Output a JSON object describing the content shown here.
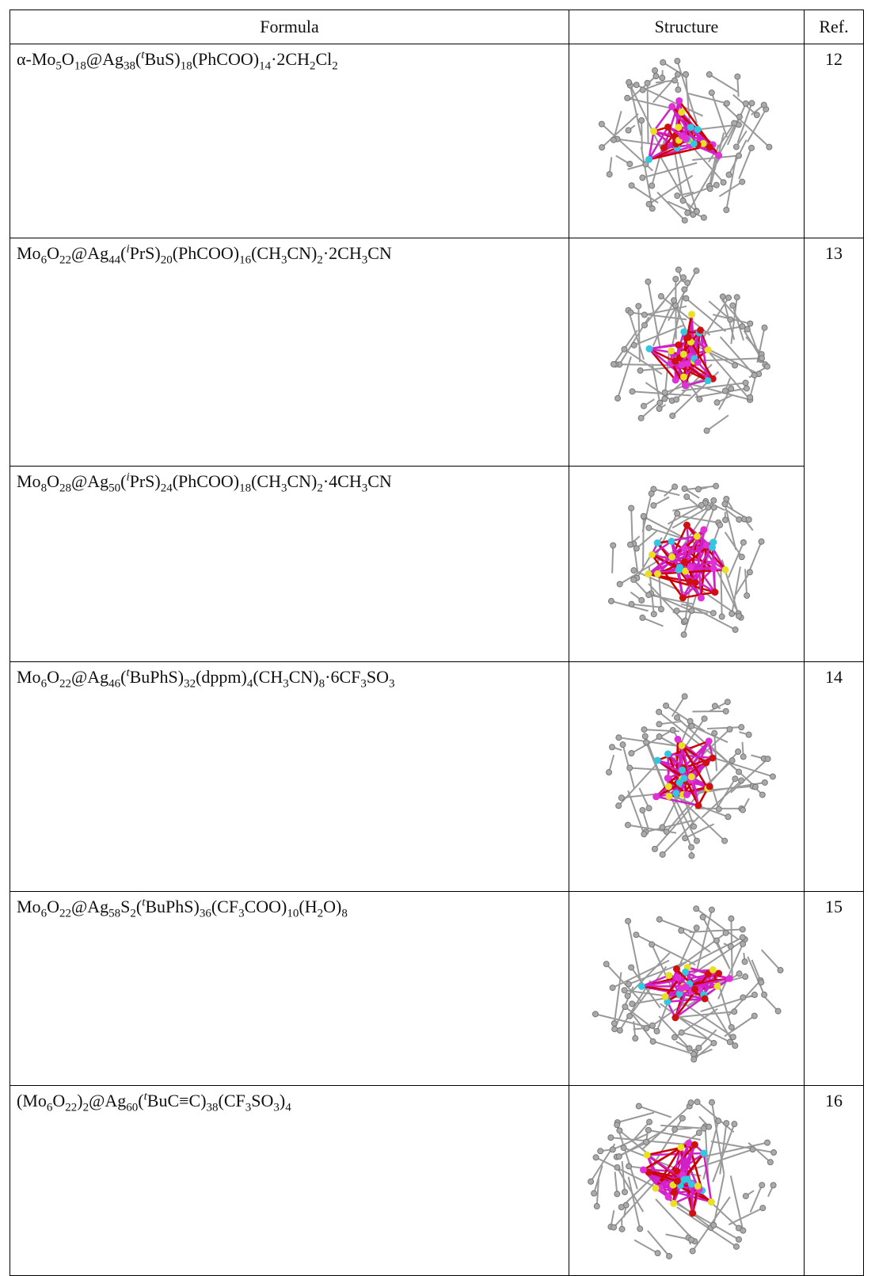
{
  "table": {
    "header": [
      "Formula",
      "Structure",
      "Ref."
    ],
    "rows": [
      {
        "formula": [
          {
            "text": "α-Mo"
          },
          {
            "sub": "5"
          },
          {
            "text": "O"
          },
          {
            "sub": "18"
          },
          {
            "text": "@Ag"
          },
          {
            "sub": "38"
          },
          {
            "text": "("
          },
          {
            "sup": "t"
          },
          {
            "text": "BuS)"
          },
          {
            "sub": "18"
          },
          {
            "text": "(PhCOO)"
          },
          {
            "sub": "14"
          },
          {
            "text": "·2CH"
          },
          {
            "sub": "2"
          },
          {
            "text": "Cl"
          },
          {
            "sub": "2"
          }
        ],
        "ref": "12"
      },
      {
        "formula": [
          {
            "text": "Mo"
          },
          {
            "sub": "6"
          },
          {
            "text": "O"
          },
          {
            "sub": "22"
          },
          {
            "text": "@Ag"
          },
          {
            "sub": "44"
          },
          {
            "text": "("
          },
          {
            "sup": "i"
          },
          {
            "text": "PrS)"
          },
          {
            "sub": "20"
          },
          {
            "text": "(PhCOO)"
          },
          {
            "sub": "16"
          },
          {
            "text": "(CH"
          },
          {
            "sub": "3"
          },
          {
            "text": "CN)"
          },
          {
            "sub": "2"
          },
          {
            "text": "·2CH"
          },
          {
            "sub": "3"
          },
          {
            "text": "CN"
          }
        ],
        "ref": "13"
      },
      {
        "formula": [
          {
            "text": "Mo"
          },
          {
            "sub": "8"
          },
          {
            "text": "O"
          },
          {
            "sub": "28"
          },
          {
            "text": "@Ag"
          },
          {
            "sub": "50"
          },
          {
            "text": "("
          },
          {
            "sup": "i"
          },
          {
            "text": "PrS)"
          },
          {
            "sub": "24"
          },
          {
            "text": "(PhCOO)"
          },
          {
            "sub": "18"
          },
          {
            "text": "(CH"
          },
          {
            "sub": "3"
          },
          {
            "text": "CN)"
          },
          {
            "sub": "2"
          },
          {
            "text": "·4CH"
          },
          {
            "sub": "3"
          },
          {
            "text": "CN"
          }
        ]
      },
      {
        "formula": [
          {
            "text": "Mo"
          },
          {
            "sub": "6"
          },
          {
            "text": "O"
          },
          {
            "sub": "22"
          },
          {
            "text": "@Ag"
          },
          {
            "sub": "46"
          },
          {
            "text": "("
          },
          {
            "sup": "t"
          },
          {
            "text": "BuPhS)"
          },
          {
            "sub": "32"
          },
          {
            "text": "(dppm)"
          },
          {
            "sub": "4"
          },
          {
            "text": "(CH"
          },
          {
            "sub": "3"
          },
          {
            "text": "CN)"
          },
          {
            "sub": "8"
          },
          {
            "text": "·6CF"
          },
          {
            "sub": "3"
          },
          {
            "text": "SO"
          },
          {
            "sub": "3"
          }
        ],
        "ref": "14"
      },
      {
        "formula": [
          {
            "text": "Mo"
          },
          {
            "sub": "6"
          },
          {
            "text": "O"
          },
          {
            "sub": "22"
          },
          {
            "text": "@Ag"
          },
          {
            "sub": "58"
          },
          {
            "text": "S"
          },
          {
            "sub": "2"
          },
          {
            "text": "("
          },
          {
            "sup": "t"
          },
          {
            "text": "BuPhS)"
          },
          {
            "sub": "36"
          },
          {
            "text": "(CF"
          },
          {
            "sub": "3"
          },
          {
            "text": "COO)"
          },
          {
            "sub": "10"
          },
          {
            "text": "(H"
          },
          {
            "sub": "2"
          },
          {
            "text": "O)"
          },
          {
            "sub": "8"
          }
        ],
        "ref": "15"
      },
      {
        "formula": [
          {
            "text": "(Mo"
          },
          {
            "sub": "6"
          },
          {
            "text": "O"
          },
          {
            "sub": "22"
          },
          {
            "text": ")"
          },
          {
            "sub": "2"
          },
          {
            "text": "@Ag"
          },
          {
            "sub": "60"
          },
          {
            "text": "("
          },
          {
            "sup": "t"
          },
          {
            "text": "BuC≡C)"
          },
          {
            "sub": "38"
          },
          {
            "text": "(CF"
          },
          {
            "sub": "3"
          },
          {
            "text": "SO"
          },
          {
            "sub": "3"
          },
          {
            "text": ")"
          },
          {
            "sub": "4"
          }
        ],
        "ref": "16"
      }
    ]
  }
}
